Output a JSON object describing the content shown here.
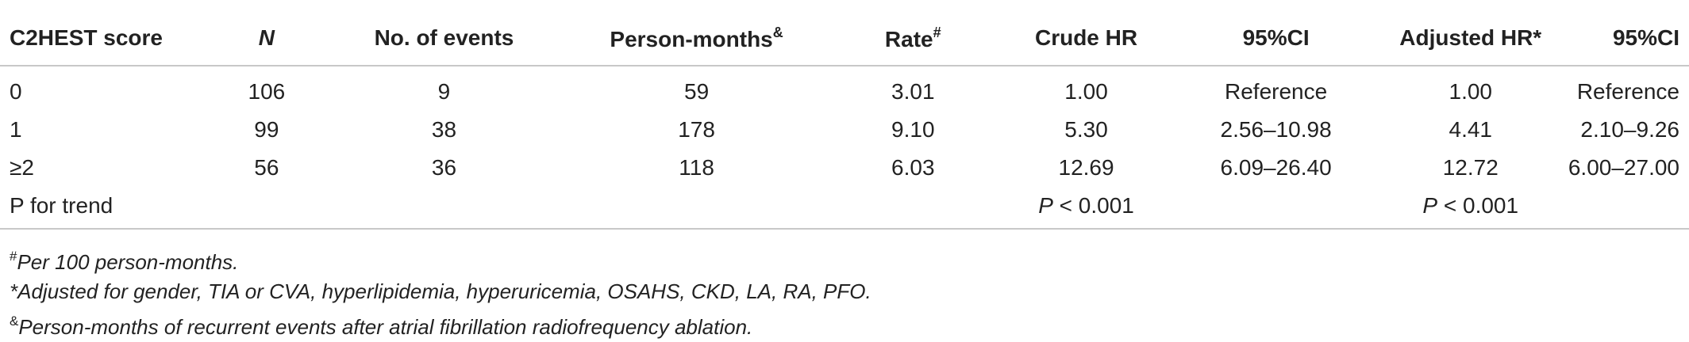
{
  "table": {
    "headers": {
      "score": "C2HEST score",
      "n": "N",
      "events": "No. of events",
      "person_months": "Person-months",
      "person_months_sup": "&",
      "rate": "Rate",
      "rate_sup": "#",
      "crude_hr": "Crude HR",
      "ci1": "95%CI",
      "adjusted_hr": "Adjusted HR*",
      "ci2": "95%CI"
    },
    "rows": [
      {
        "score": "0",
        "n": "106",
        "events": "9",
        "person_months": "59",
        "rate": "3.01",
        "crude_hr": "1.00",
        "ci1": "Reference",
        "adjusted_hr": "1.00",
        "ci2": "Reference"
      },
      {
        "score": "1",
        "n": "99",
        "events": "38",
        "person_months": "178",
        "rate": "9.10",
        "crude_hr": "5.30",
        "ci1": "2.56–10.98",
        "adjusted_hr": "4.41",
        "ci2": "2.10–9.26"
      },
      {
        "score": "≥2",
        "n": "56",
        "events": "36",
        "person_months": "118",
        "rate": "6.03",
        "crude_hr": "12.69",
        "ci1": "6.09–26.40",
        "adjusted_hr": "12.72",
        "ci2": "6.00–27.00"
      }
    ],
    "trend": {
      "label": "P for trend",
      "crude_p_symbol": "P",
      "crude_p_rest": " < 0.001",
      "adjusted_p_symbol": "P",
      "adjusted_p_rest": " < 0.001"
    }
  },
  "footnotes": [
    {
      "mark": "#",
      "text": "Per 100 person-months."
    },
    {
      "mark": "",
      "text": "*Adjusted for gender, TIA or CVA, hyperlipidemia, hyperuricemia, OSAHS, CKD, LA, RA, PFO."
    },
    {
      "mark": "&",
      "text": "Person-months of recurrent events after atrial fibrillation radiofrequency ablation."
    }
  ]
}
